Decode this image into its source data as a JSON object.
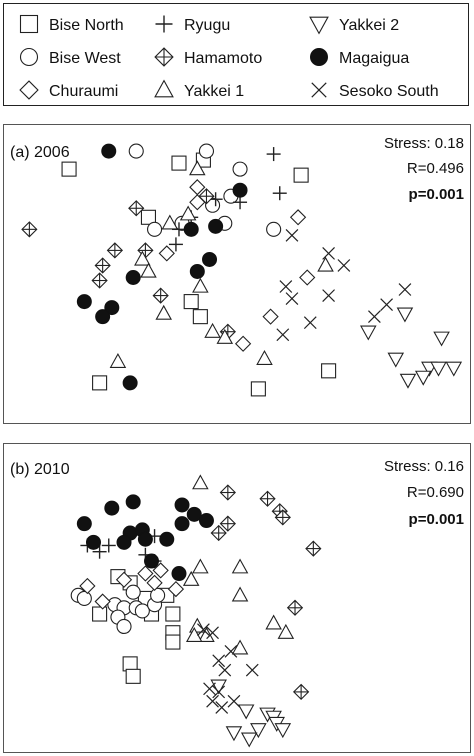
{
  "chart_data": [
    {
      "type": "scatter",
      "panel_label": "(a) 2006",
      "stats": {
        "stress": "Stress: 0.18",
        "r": "R=0.496",
        "p": "p=0.001"
      },
      "series": [
        {
          "name": "Bise North",
          "marker": "square",
          "points": [
            [
              0.2,
              0.27
            ],
            [
              0.56,
              0.25
            ],
            [
              0.64,
              0.24
            ],
            [
              0.46,
              0.43
            ],
            [
              0.6,
              0.71
            ],
            [
              0.63,
              0.76
            ],
            [
              0.96,
              0.29
            ],
            [
              0.82,
              1.0
            ],
            [
              1.05,
              0.94
            ],
            [
              0.3,
              0.98
            ]
          ]
        },
        {
          "name": "Bise West",
          "marker": "circle",
          "points": [
            [
              0.42,
              0.21
            ],
            [
              0.65,
              0.21
            ],
            [
              0.76,
              0.27
            ],
            [
              0.73,
              0.36
            ],
            [
              0.67,
              0.39
            ],
            [
              0.57,
              0.45
            ],
            [
              0.71,
              0.45
            ],
            [
              0.87,
              0.47
            ],
            [
              0.48,
              0.47
            ]
          ]
        },
        {
          "name": "Churaumi",
          "marker": "diamond",
          "points": [
            [
              0.62,
              0.33
            ],
            [
              0.62,
              0.38
            ],
            [
              0.95,
              0.43
            ],
            [
              0.98,
              0.63
            ],
            [
              0.86,
              0.76
            ],
            [
              0.77,
              0.85
            ],
            [
              0.52,
              0.55
            ]
          ]
        },
        {
          "name": "Ryugu",
          "marker": "plus",
          "points": [
            [
              0.87,
              0.22
            ],
            [
              0.89,
              0.35
            ],
            [
              0.68,
              0.37
            ],
            [
              0.76,
              0.38
            ],
            [
              0.6,
              0.43
            ],
            [
              0.56,
              0.47
            ],
            [
              0.55,
              0.52
            ]
          ]
        },
        {
          "name": "Hamamoto",
          "marker": "diamond-cross",
          "points": [
            [
              0.07,
              0.47
            ],
            [
              0.42,
              0.4
            ],
            [
              0.65,
              0.36
            ],
            [
              0.35,
              0.54
            ],
            [
              0.45,
              0.54
            ],
            [
              0.31,
              0.59
            ],
            [
              0.3,
              0.64
            ],
            [
              0.5,
              0.69
            ],
            [
              0.72,
              0.81
            ]
          ]
        },
        {
          "name": "Yakkei 1",
          "marker": "triangle",
          "points": [
            [
              0.62,
              0.27
            ],
            [
              0.59,
              0.42
            ],
            [
              0.53,
              0.45
            ],
            [
              0.44,
              0.57
            ],
            [
              0.46,
              0.61
            ],
            [
              0.63,
              0.66
            ],
            [
              1.04,
              0.59
            ],
            [
              0.67,
              0.81
            ],
            [
              0.71,
              0.83
            ],
            [
              0.36,
              0.91
            ],
            [
              0.84,
              0.9
            ],
            [
              0.51,
              0.75
            ]
          ]
        },
        {
          "name": "Yakkei 2",
          "marker": "triangle-down",
          "points": [
            [
              1.3,
              0.75
            ],
            [
              1.18,
              0.81
            ],
            [
              1.27,
              0.9
            ],
            [
              1.42,
              0.83
            ],
            [
              1.31,
              0.97
            ],
            [
              1.38,
              0.93
            ],
            [
              1.41,
              0.93
            ],
            [
              1.46,
              0.93
            ],
            [
              1.36,
              0.96
            ]
          ]
        },
        {
          "name": "Magaigua",
          "marker": "filled-circle",
          "points": [
            [
              0.33,
              0.21
            ],
            [
              0.76,
              0.34
            ],
            [
              0.6,
              0.47
            ],
            [
              0.68,
              0.46
            ],
            [
              0.66,
              0.57
            ],
            [
              0.41,
              0.63
            ],
            [
              0.25,
              0.71
            ],
            [
              0.34,
              0.73
            ],
            [
              0.31,
              0.76
            ],
            [
              0.4,
              0.98
            ],
            [
              0.62,
              0.61
            ]
          ]
        },
        {
          "name": "Sesoko South",
          "marker": "x",
          "points": [
            [
              0.93,
              0.49
            ],
            [
              1.05,
              0.55
            ],
            [
              1.1,
              0.59
            ],
            [
              1.05,
              0.69
            ],
            [
              0.91,
              0.66
            ],
            [
              0.93,
              0.7
            ],
            [
              1.24,
              0.72
            ],
            [
              1.3,
              0.67
            ],
            [
              0.9,
              0.82
            ],
            [
              1.2,
              0.76
            ],
            [
              0.99,
              0.78
            ]
          ]
        }
      ]
    },
    {
      "type": "scatter",
      "panel_label": "(b) 2010",
      "stats": {
        "stress": "Stress: 0.16",
        "r": "R=0.690",
        "p": "p=0.001"
      },
      "series": [
        {
          "name": "Bise North",
          "marker": "square",
          "points": [
            [
              0.36,
              0.55
            ],
            [
              0.4,
              0.57
            ],
            [
              0.45,
              0.62
            ],
            [
              0.52,
              0.61
            ],
            [
              0.47,
              0.67
            ],
            [
              0.54,
              0.67
            ],
            [
              0.3,
              0.67
            ],
            [
              0.4,
              0.83
            ],
            [
              0.54,
              0.73
            ],
            [
              0.54,
              0.76
            ],
            [
              0.41,
              0.87
            ]
          ]
        },
        {
          "name": "Bise West",
          "marker": "circle",
          "points": [
            [
              0.23,
              0.61
            ],
            [
              0.25,
              0.62
            ],
            [
              0.35,
              0.64
            ],
            [
              0.38,
              0.65
            ],
            [
              0.42,
              0.65
            ],
            [
              0.44,
              0.66
            ],
            [
              0.48,
              0.64
            ],
            [
              0.41,
              0.6
            ],
            [
              0.49,
              0.61
            ],
            [
              0.36,
              0.68
            ],
            [
              0.38,
              0.71
            ]
          ]
        },
        {
          "name": "Churaumi",
          "marker": "diamond",
          "points": [
            [
              0.26,
              0.58
            ],
            [
              0.38,
              0.56
            ],
            [
              0.45,
              0.54
            ],
            [
              0.48,
              0.57
            ],
            [
              0.5,
              0.53
            ],
            [
              0.31,
              0.63
            ],
            [
              0.55,
              0.59
            ]
          ]
        },
        {
          "name": "Ryugu",
          "marker": "plus",
          "points": [
            [
              0.26,
              0.45
            ],
            [
              0.33,
              0.45
            ],
            [
              0.3,
              0.47
            ],
            [
              0.48,
              0.42
            ],
            [
              0.45,
              0.48
            ],
            [
              0.48,
              0.5
            ]
          ]
        },
        {
          "name": "Hamamoto",
          "marker": "diamond-cross",
          "points": [
            [
              0.72,
              0.28
            ],
            [
              0.85,
              0.3
            ],
            [
              0.89,
              0.34
            ],
            [
              0.9,
              0.36
            ],
            [
              0.72,
              0.38
            ],
            [
              0.69,
              0.41
            ],
            [
              1.0,
              0.46
            ],
            [
              0.94,
              0.65
            ],
            [
              0.96,
              0.92
            ]
          ]
        },
        {
          "name": "Yakkei 1",
          "marker": "triangle",
          "points": [
            [
              0.63,
              0.25
            ],
            [
              0.63,
              0.52
            ],
            [
              0.76,
              0.52
            ],
            [
              0.6,
              0.56
            ],
            [
              0.76,
              0.61
            ],
            [
              0.65,
              0.74
            ],
            [
              0.76,
              0.78
            ],
            [
              0.87,
              0.7
            ],
            [
              0.91,
              0.73
            ],
            [
              0.62,
              0.71
            ],
            [
              0.61,
              0.74
            ]
          ]
        },
        {
          "name": "Yakkei 2",
          "marker": "triangle-down",
          "points": [
            [
              0.69,
              0.9
            ],
            [
              0.78,
              0.98
            ],
            [
              0.85,
              0.99
            ],
            [
              0.87,
              1.0
            ],
            [
              0.88,
              1.02
            ],
            [
              0.9,
              1.04
            ],
            [
              0.82,
              1.04
            ],
            [
              0.79,
              1.07
            ],
            [
              0.74,
              1.05
            ]
          ]
        },
        {
          "name": "Magaigua",
          "marker": "filled-circle",
          "points": [
            [
              0.25,
              0.38
            ],
            [
              0.34,
              0.33
            ],
            [
              0.41,
              0.31
            ],
            [
              0.57,
              0.32
            ],
            [
              0.61,
              0.35
            ],
            [
              0.57,
              0.38
            ],
            [
              0.65,
              0.37
            ],
            [
              0.28,
              0.44
            ],
            [
              0.4,
              0.41
            ],
            [
              0.44,
              0.4
            ],
            [
              0.45,
              0.43
            ],
            [
              0.52,
              0.43
            ],
            [
              0.47,
              0.5
            ],
            [
              0.56,
              0.54
            ],
            [
              0.38,
              0.44
            ]
          ]
        },
        {
          "name": "Sesoko South",
          "marker": "x",
          "points": [
            [
              0.64,
              0.72
            ],
            [
              0.67,
              0.73
            ],
            [
              0.69,
              0.82
            ],
            [
              0.73,
              0.79
            ],
            [
              0.71,
              0.85
            ],
            [
              0.8,
              0.85
            ],
            [
              0.66,
              0.91
            ],
            [
              0.69,
              0.92
            ],
            [
              0.67,
              0.95
            ],
            [
              0.7,
              0.97
            ],
            [
              0.74,
              0.95
            ]
          ]
        }
      ]
    }
  ],
  "legend": {
    "entries": [
      {
        "label": "Bise North",
        "marker": "square"
      },
      {
        "label": "Bise West",
        "marker": "circle"
      },
      {
        "label": "Churaumi",
        "marker": "diamond"
      },
      {
        "label": "Ryugu",
        "marker": "plus"
      },
      {
        "label": "Hamamoto",
        "marker": "diamond-cross"
      },
      {
        "label": "Yakkei 1",
        "marker": "triangle"
      },
      {
        "label": "Yakkei 2",
        "marker": "triangle-down"
      },
      {
        "label": "Magaigua",
        "marker": "filled-circle"
      },
      {
        "label": "Sesoko South",
        "marker": "x"
      }
    ]
  },
  "colors": {
    "marker_stroke": "#222222",
    "filled_marker": "#111111",
    "frame": "#555555"
  }
}
